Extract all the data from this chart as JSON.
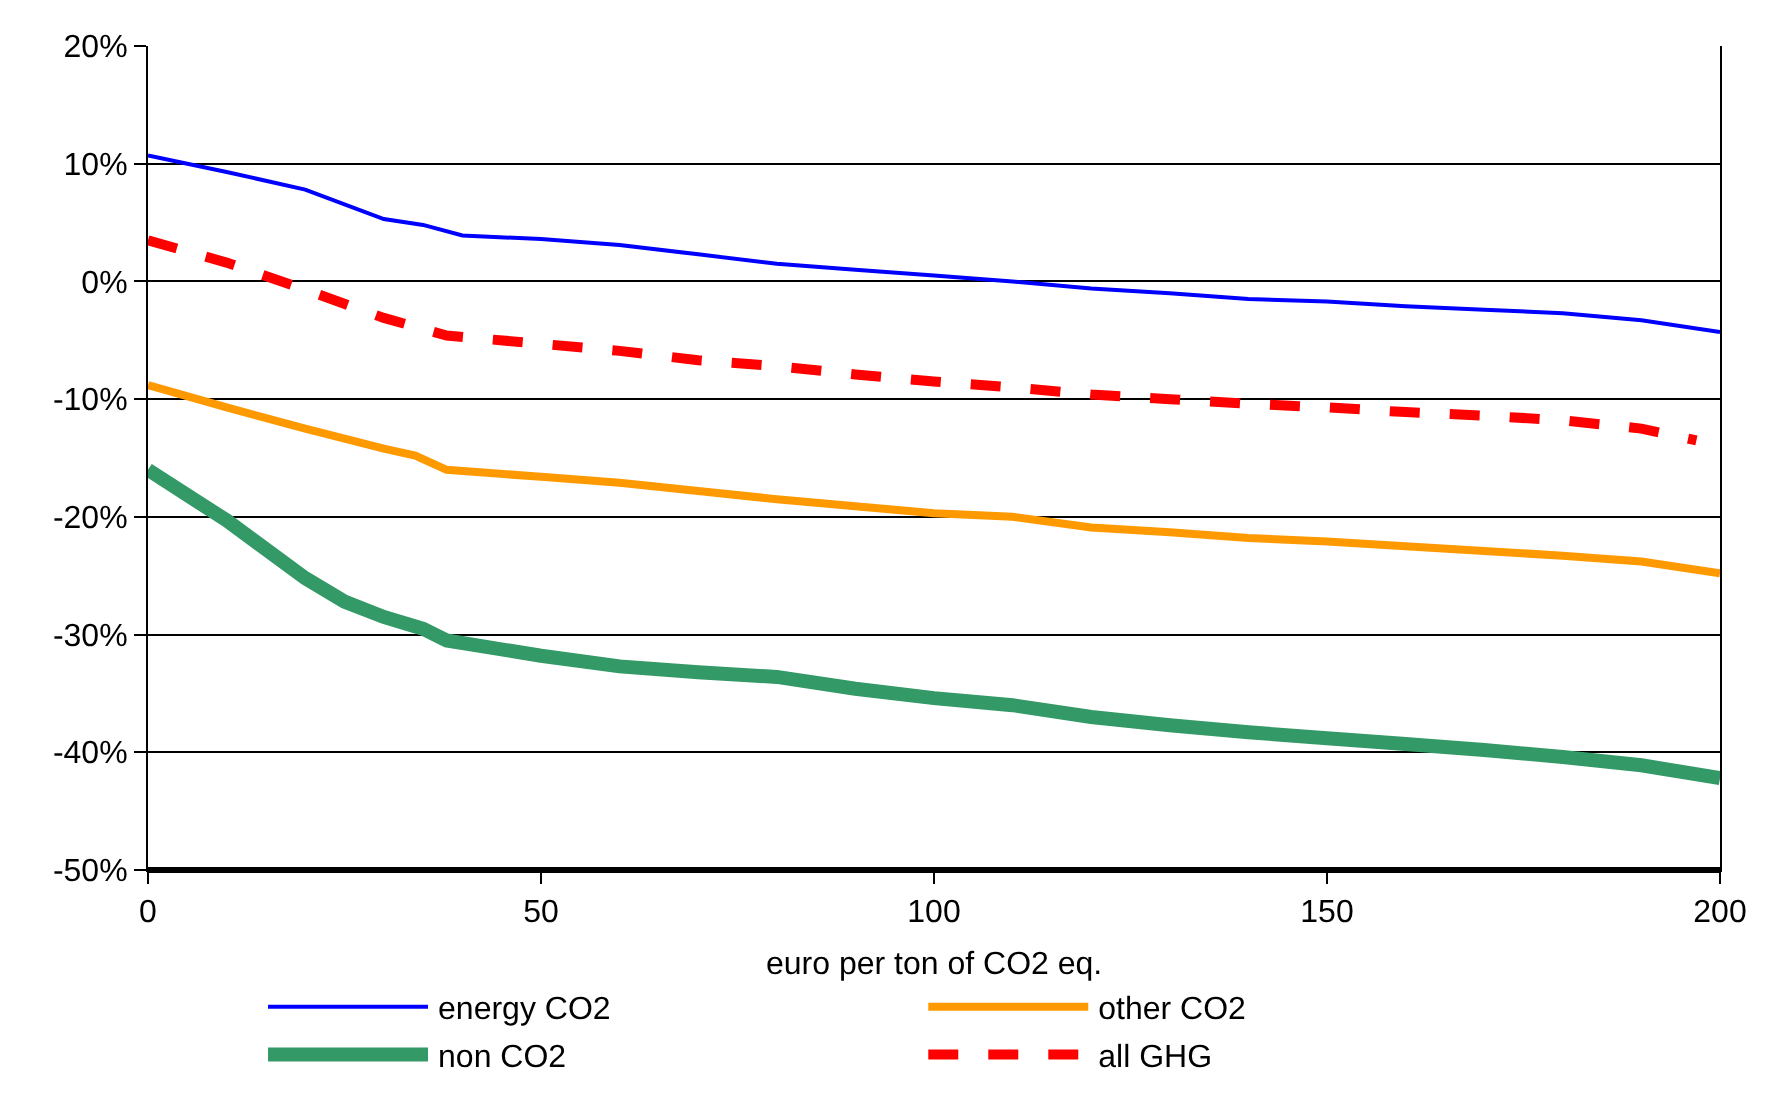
{
  "chart_data": {
    "type": "line",
    "xlabel": "euro per ton of CO2 eq.",
    "xlim": [
      0,
      200
    ],
    "xticks": [
      0,
      50,
      100,
      150,
      200
    ],
    "ylim": [
      -50,
      20
    ],
    "yticks": [
      {
        "value": -50,
        "label": "-50%"
      },
      {
        "value": -40,
        "label": "-40%"
      },
      {
        "value": -30,
        "label": "-30%"
      },
      {
        "value": -20,
        "label": "-20%"
      },
      {
        "value": -10,
        "label": "-10%"
      },
      {
        "value": 0,
        "label": "0%"
      },
      {
        "value": 10,
        "label": "10%"
      },
      {
        "value": 20,
        "label": "20%"
      }
    ],
    "grid": "y",
    "legend": "bottom",
    "marker": "none",
    "series": [
      {
        "name": "energy CO2",
        "color": "#0000ff",
        "line_style": "solid",
        "x": [
          0,
          10,
          20,
          30,
          35,
          40,
          50,
          60,
          70,
          80,
          90,
          100,
          110,
          120,
          130,
          140,
          150,
          160,
          170,
          180,
          190,
          200
        ],
        "values": [
          10.7,
          9.3,
          7.8,
          5.3,
          4.8,
          3.9,
          3.6,
          3.1,
          2.3,
          1.5,
          1.0,
          0.5,
          0.0,
          -0.6,
          -1.0,
          -1.5,
          -1.7,
          -2.1,
          -2.4,
          -2.7,
          -3.3,
          -4.3
        ]
      },
      {
        "name": "other CO2",
        "color": "#ff9900",
        "line_style": "solid",
        "x": [
          0,
          10,
          20,
          30,
          34,
          38,
          50,
          60,
          70,
          80,
          90,
          100,
          110,
          120,
          130,
          140,
          150,
          160,
          170,
          180,
          190,
          200
        ],
        "values": [
          -8.8,
          -10.7,
          -12.5,
          -14.2,
          -14.8,
          -16.0,
          -16.6,
          -17.1,
          -17.8,
          -18.5,
          -19.1,
          -19.7,
          -20.0,
          -20.9,
          -21.3,
          -21.8,
          -22.1,
          -22.5,
          -22.9,
          -23.3,
          -23.8,
          -24.8
        ]
      },
      {
        "name": "non CO2",
        "color": "#339966",
        "line_style": "solid",
        "x": [
          0,
          10,
          20,
          25,
          30,
          35,
          38,
          50,
          60,
          70,
          80,
          90,
          100,
          110,
          120,
          130,
          140,
          150,
          160,
          170,
          180,
          190,
          200
        ],
        "values": [
          -16.0,
          -20.3,
          -25.2,
          -27.2,
          -28.5,
          -29.5,
          -30.5,
          -31.8,
          -32.7,
          -33.2,
          -33.6,
          -34.6,
          -35.4,
          -36.0,
          -37.0,
          -37.7,
          -38.3,
          -38.8,
          -39.3,
          -39.8,
          -40.4,
          -41.1,
          -42.2
        ]
      },
      {
        "name": "all GHG",
        "color": "#ff0000",
        "line_style": "dashed",
        "x": [
          0,
          10,
          20,
          30,
          38,
          50,
          60,
          70,
          80,
          90,
          100,
          110,
          120,
          130,
          140,
          150,
          160,
          170,
          180,
          190,
          197
        ],
        "values": [
          3.5,
          1.6,
          -0.7,
          -3.1,
          -4.6,
          -5.3,
          -5.9,
          -6.7,
          -7.2,
          -7.9,
          -8.5,
          -9.0,
          -9.6,
          -10.0,
          -10.4,
          -10.7,
          -11.1,
          -11.4,
          -11.8,
          -12.5,
          -13.5
        ]
      }
    ]
  }
}
